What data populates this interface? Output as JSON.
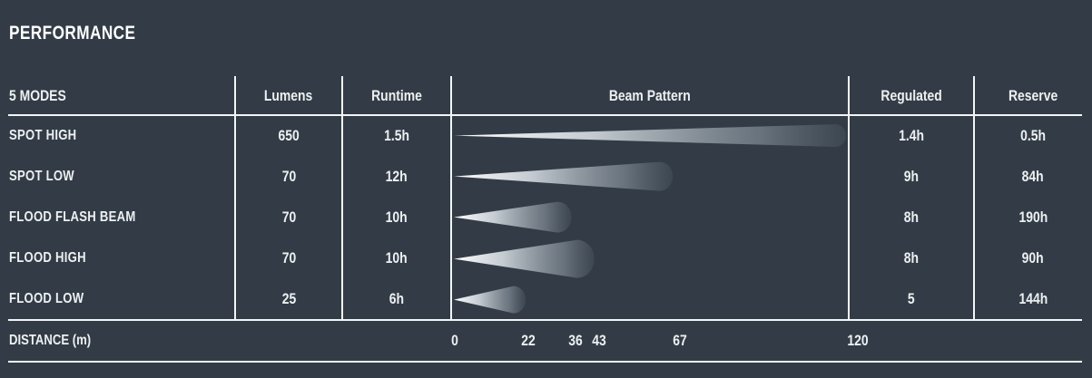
{
  "title": "PERFORMANCE",
  "colors": {
    "background": "#333C46",
    "text": "#EDF0F2",
    "divider": "#F2F5F6",
    "beam_bright": "#FFFFFF",
    "beam_fade": "#78838E"
  },
  "chart_data": {
    "type": "table",
    "title": "PERFORMANCE",
    "columns": {
      "modes": "5 MODES",
      "lumens": "Lumens",
      "runtime": "Runtime",
      "beam": "Beam Pattern",
      "regulated": "Regulated",
      "reserve": "Reserve"
    },
    "rows": [
      {
        "mode": "SPOT HIGH",
        "lumens": "650",
        "runtime": "1.5h",
        "beam_distance_m": 120,
        "regulated": "1.4h",
        "reserve": "0.5h"
      },
      {
        "mode": "SPOT LOW",
        "lumens": "70",
        "runtime": "12h",
        "beam_distance_m": 67,
        "regulated": "9h",
        "reserve": "84h"
      },
      {
        "mode": "FLOOD FLASH BEAM",
        "lumens": "70",
        "runtime": "10h",
        "beam_distance_m": 36,
        "regulated": "8h",
        "reserve": "190h"
      },
      {
        "mode": "FLOOD HIGH",
        "lumens": "70",
        "runtime": "10h",
        "beam_distance_m": 43,
        "regulated": "8h",
        "reserve": "90h"
      },
      {
        "mode": "FLOOD LOW",
        "lumens": "25",
        "runtime": "6h",
        "beam_distance_m": 22,
        "regulated": "5",
        "reserve": "144h"
      }
    ],
    "distance_axis": {
      "label": "DISTANCE (m)",
      "unit": "m",
      "range": [
        0,
        120
      ],
      "ticks": [
        0,
        22,
        36,
        43,
        67,
        120
      ]
    }
  }
}
